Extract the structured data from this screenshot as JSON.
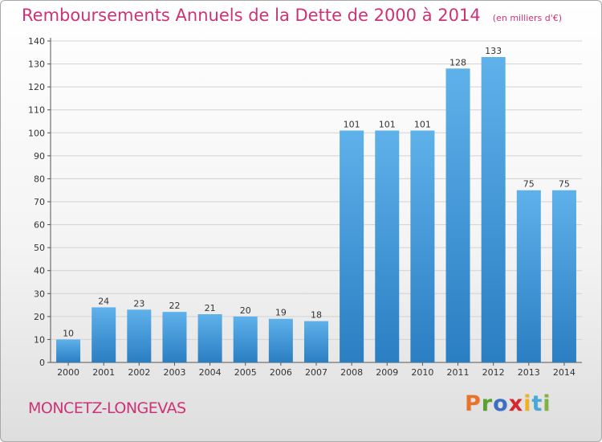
{
  "chart_data": {
    "type": "bar",
    "title": "Remboursements Annuels de la Dette de 2000 à 2014",
    "subtitle": "(en milliers d'€)",
    "categories": [
      "2000",
      "2001",
      "2002",
      "2003",
      "2004",
      "2005",
      "2006",
      "2007",
      "2008",
      "2009",
      "2010",
      "2011",
      "2012",
      "2013",
      "2014"
    ],
    "values": [
      10,
      24,
      23,
      22,
      21,
      20,
      19,
      18,
      101,
      101,
      101,
      128,
      133,
      75,
      75
    ],
    "ylim": [
      0,
      140
    ],
    "yticks": [
      0,
      10,
      20,
      30,
      40,
      50,
      60,
      70,
      80,
      90,
      100,
      110,
      120,
      130,
      140
    ],
    "grid": true,
    "xlabel": "",
    "ylabel": ""
  },
  "footer": {
    "commune": "MONCETZ-LONGEVAS",
    "brand": "Proxiti"
  },
  "colors": {
    "title": "#cc3377",
    "bar_light": "#5fb1ea",
    "bar_dark": "#2a7ec2",
    "grid": "#d2d2d2",
    "brand_letters": [
      "#e8732a",
      "#5aa02c",
      "#3a6fc4",
      "#d7262c",
      "#f2b021",
      "#4aa8d8",
      "#7cb342"
    ]
  }
}
